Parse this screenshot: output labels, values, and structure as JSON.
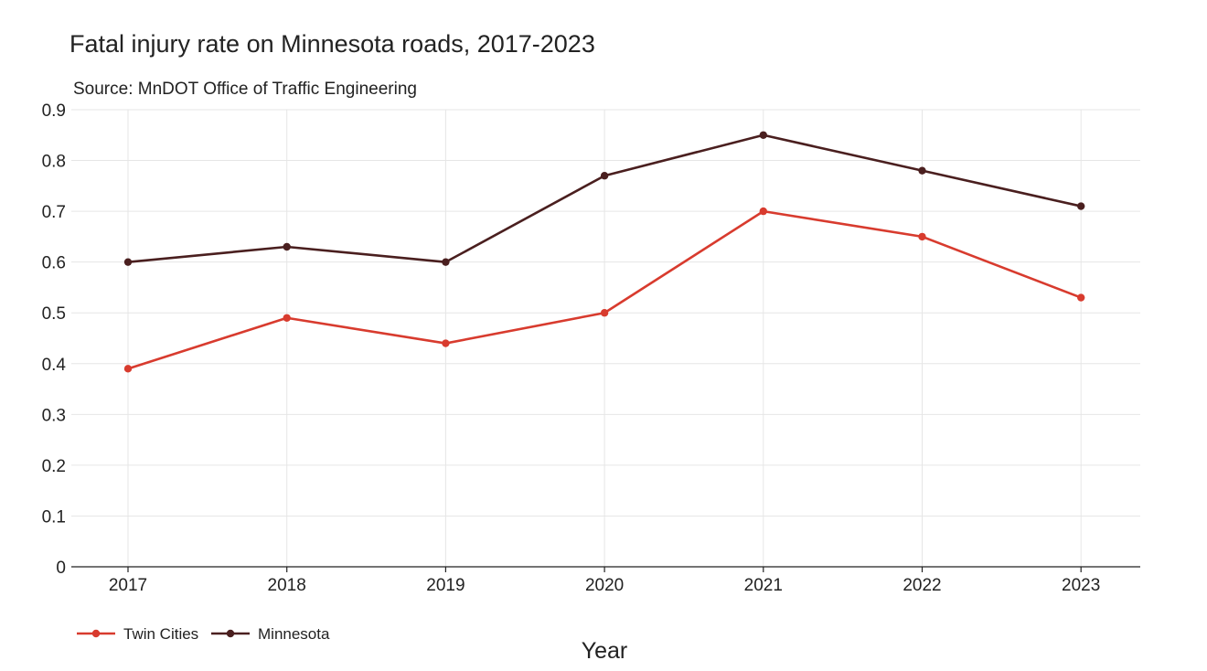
{
  "chart_data": {
    "type": "line",
    "title": "Fatal injury rate on Minnesota roads, 2017-2023",
    "subtitle": "Source: MnDOT Office of Traffic Engineering",
    "xlabel": "Year",
    "ylabel": "",
    "categories": [
      "2017",
      "2018",
      "2019",
      "2020",
      "2021",
      "2022",
      "2023"
    ],
    "ylim": [
      0,
      0.9
    ],
    "yticks": [
      "0",
      "0.1",
      "0.2",
      "0.3",
      "0.4",
      "0.5",
      "0.6",
      "0.7",
      "0.8",
      "0.9"
    ],
    "grid": true,
    "legend_position": "bottom-left",
    "series": [
      {
        "name": "Twin Cities",
        "color": "#d83b2e",
        "values": [
          0.39,
          0.49,
          0.44,
          0.5,
          0.7,
          0.65,
          0.53
        ]
      },
      {
        "name": "Minnesota",
        "color": "#4a1f1f",
        "values": [
          0.6,
          0.63,
          0.6,
          0.77,
          0.85,
          0.78,
          0.71
        ]
      }
    ]
  }
}
